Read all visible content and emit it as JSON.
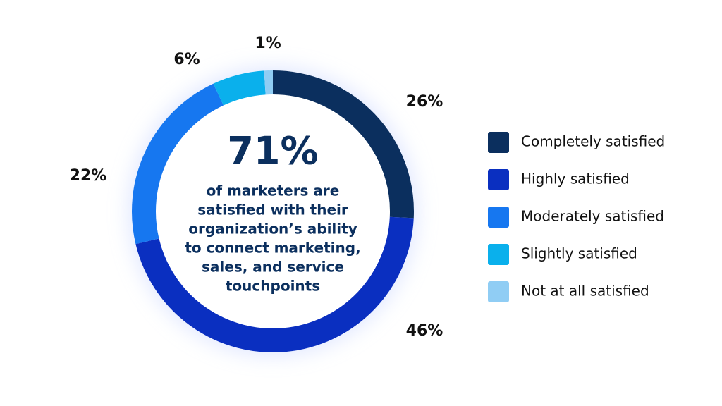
{
  "chart_data": {
    "type": "donut",
    "categories": [
      "Completely satisfied",
      "Highly satisfied",
      "Moderately satisfied",
      "Slightly satisfied",
      "Not at all satisfied"
    ],
    "values": [
      26,
      46,
      22,
      6,
      1
    ],
    "value_labels": [
      "26%",
      "46%",
      "22%",
      "6%",
      "1%"
    ],
    "colors": [
      "#0b2f5e",
      "#0a2fc0",
      "#1677f0",
      "#0ab0ec",
      "#90cdf4"
    ],
    "center_value": "71%",
    "center_text": [
      "of marketers are",
      "satisfied with their",
      "organization’s ability",
      "to connect marketing,",
      "sales, and service",
      "touchpoints"
    ]
  }
}
